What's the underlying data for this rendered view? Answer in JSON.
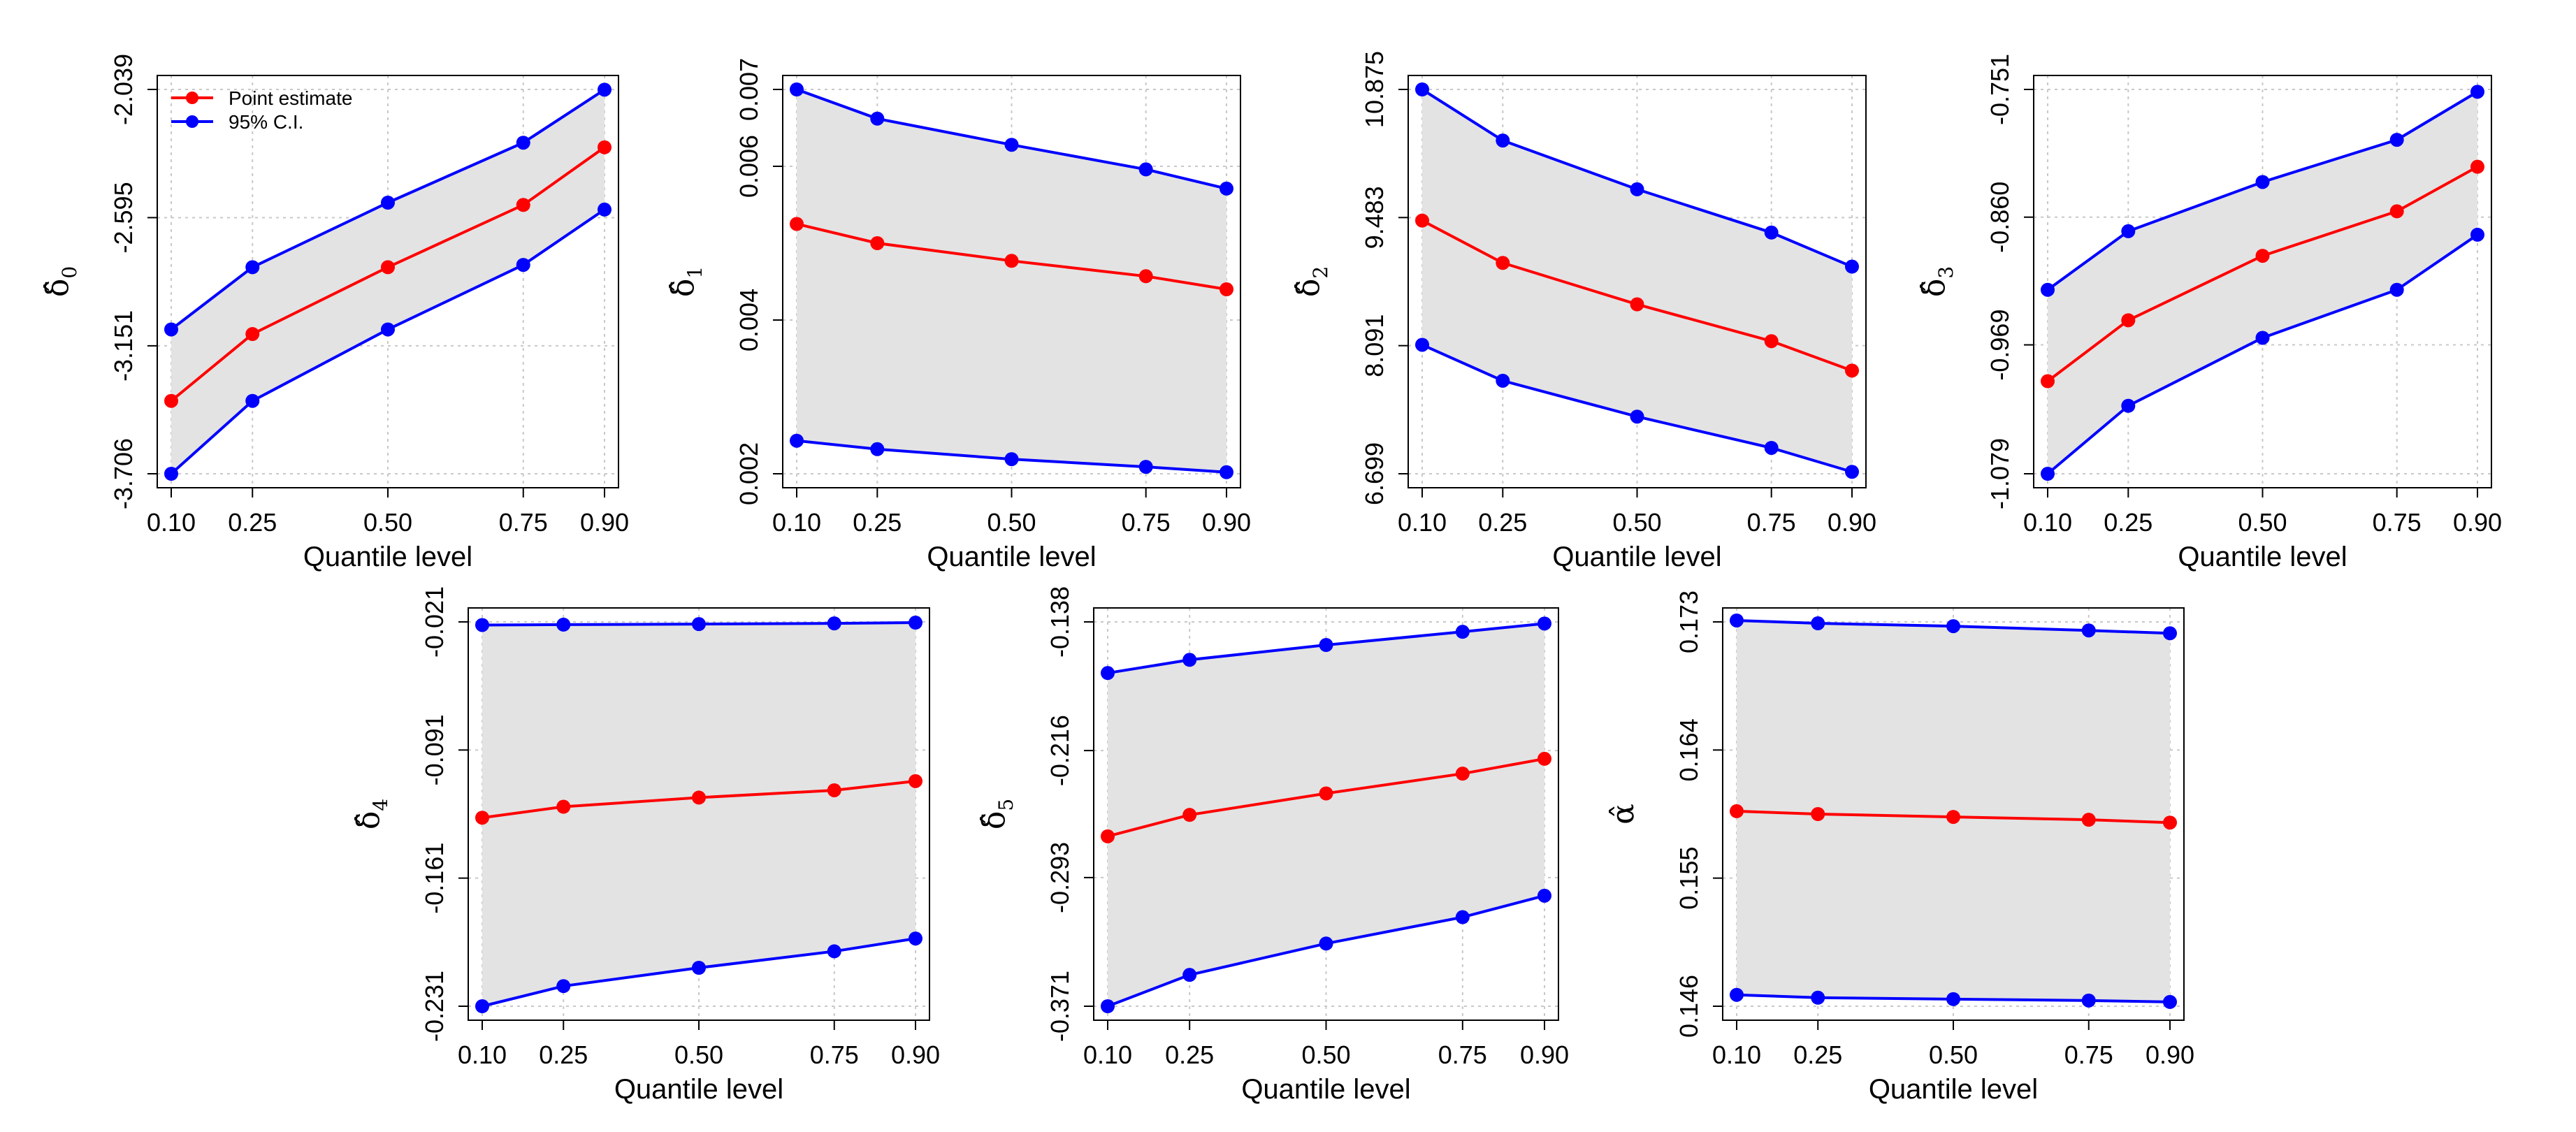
{
  "chart_data": [
    {
      "type": "line",
      "panel": "delta0",
      "ylabel_symbol": "δ̂",
      "ylabel_subscript": "0",
      "xlabel": "Quantile level",
      "x": [
        0.1,
        0.25,
        0.5,
        0.75,
        0.9
      ],
      "x_tick_labels": [
        "0.10",
        "0.25",
        "0.50",
        "0.75",
        "0.90"
      ],
      "y_tick_values": [
        -3.706,
        -3.151,
        -2.595,
        -2.039
      ],
      "y_tick_labels": [
        "-3.706",
        "-3.151",
        "-2.595",
        "-2.039"
      ],
      "ylim": [
        -3.706,
        -2.039
      ],
      "grid": true,
      "shaded_band": "between CI bounds",
      "legend": {
        "position": "top-left",
        "entries": [
          "Point estimate",
          "95% C.I."
        ]
      },
      "series": [
        {
          "name": "Point estimate",
          "color": "#ff0000",
          "values": [
            -3.39,
            -3.1,
            -2.81,
            -2.54,
            -2.29
          ]
        },
        {
          "name": "95% C.I. upper",
          "color": "#0000ff",
          "values": [
            -3.08,
            -2.81,
            -2.53,
            -2.27,
            -2.04
          ]
        },
        {
          "name": "95% C.I. lower",
          "color": "#0000ff",
          "values": [
            -3.706,
            -3.39,
            -3.08,
            -2.8,
            -2.56
          ]
        }
      ]
    },
    {
      "type": "line",
      "panel": "delta1",
      "ylabel_symbol": "δ̂",
      "ylabel_subscript": "1",
      "xlabel": "Quantile level",
      "x": [
        0.1,
        0.25,
        0.5,
        0.75,
        0.9
      ],
      "x_tick_labels": [
        "0.10",
        "0.25",
        "0.50",
        "0.75",
        "0.90"
      ],
      "y_tick_values": [
        0.002,
        0.004,
        0.006,
        0.007
      ],
      "y_tick_labels": [
        "0.002",
        "0.004",
        "0.006",
        "0.007"
      ],
      "ylim": [
        0.002,
        0.007
      ],
      "grid": true,
      "shaded_band": "between CI bounds",
      "series": [
        {
          "name": "Point estimate",
          "color": "#ff0000",
          "values": [
            0.00525,
            0.005,
            0.00477,
            0.00457,
            0.0044
          ]
        },
        {
          "name": "95% C.I. upper",
          "color": "#0000ff",
          "values": [
            0.007,
            0.00662,
            0.00628,
            0.00596,
            0.00571
          ]
        },
        {
          "name": "95% C.I. lower",
          "color": "#0000ff",
          "values": [
            0.00243,
            0.00232,
            0.00219,
            0.00209,
            0.00202
          ]
        }
      ]
    },
    {
      "type": "line",
      "panel": "delta2",
      "ylabel_symbol": "δ̂",
      "ylabel_subscript": "2",
      "xlabel": "Quantile level",
      "x": [
        0.1,
        0.25,
        0.5,
        0.75,
        0.9
      ],
      "x_tick_labels": [
        "0.10",
        "0.25",
        "0.50",
        "0.75",
        "0.90"
      ],
      "y_tick_values": [
        6.699,
        8.091,
        9.483,
        10.875
      ],
      "y_tick_labels": [
        "6.699",
        "8.091",
        "9.483",
        "10.875"
      ],
      "ylim": [
        6.699,
        10.875
      ],
      "grid": true,
      "shaded_band": "between CI bounds",
      "series": [
        {
          "name": "Point estimate",
          "color": "#ff0000",
          "values": [
            9.45,
            8.99,
            8.54,
            8.14,
            7.82
          ]
        },
        {
          "name": "95% C.I. upper",
          "color": "#0000ff",
          "values": [
            10.875,
            10.32,
            9.79,
            9.32,
            8.95
          ]
        },
        {
          "name": "95% C.I. lower",
          "color": "#0000ff",
          "values": [
            8.1,
            7.71,
            7.32,
            6.98,
            6.72
          ]
        }
      ]
    },
    {
      "type": "line",
      "panel": "delta3",
      "ylabel_symbol": "δ̂",
      "ylabel_subscript": "3",
      "xlabel": "Quantile level",
      "x": [
        0.1,
        0.25,
        0.5,
        0.75,
        0.9
      ],
      "x_tick_labels": [
        "0.10",
        "0.25",
        "0.50",
        "0.75",
        "0.90"
      ],
      "y_tick_values": [
        -1.079,
        -0.969,
        -0.86,
        -0.751
      ],
      "y_tick_labels": [
        "-1.079",
        "-0.969",
        "-0.860",
        "-0.751"
      ],
      "ylim": [
        -1.079,
        -0.751
      ],
      "grid": true,
      "shaded_band": "between CI bounds",
      "series": [
        {
          "name": "Point estimate",
          "color": "#ff0000",
          "values": [
            -1.0,
            -0.948,
            -0.893,
            -0.855,
            -0.817
          ]
        },
        {
          "name": "95% C.I. upper",
          "color": "#0000ff",
          "values": [
            -0.922,
            -0.872,
            -0.83,
            -0.794,
            -0.753
          ]
        },
        {
          "name": "95% C.I. lower",
          "color": "#0000ff",
          "values": [
            -1.079,
            -1.021,
            -0.963,
            -0.922,
            -0.875
          ]
        }
      ]
    },
    {
      "type": "line",
      "panel": "delta4",
      "ylabel_symbol": "δ̂",
      "ylabel_subscript": "4",
      "xlabel": "Quantile level",
      "x": [
        0.1,
        0.25,
        0.5,
        0.75,
        0.9
      ],
      "x_tick_labels": [
        "0.10",
        "0.25",
        "0.50",
        "0.75",
        "0.90"
      ],
      "y_tick_values": [
        -0.231,
        -0.161,
        -0.091,
        -0.021
      ],
      "y_tick_labels": [
        "-0.231",
        "-0.161",
        "-0.091",
        "-0.021"
      ],
      "ylim": [
        -0.231,
        -0.021
      ],
      "grid": true,
      "shaded_band": "between CI bounds",
      "series": [
        {
          "name": "Point estimate",
          "color": "#ff0000",
          "values": [
            -0.128,
            -0.122,
            -0.117,
            -0.113,
            -0.108
          ]
        },
        {
          "name": "95% C.I. upper",
          "color": "#0000ff",
          "values": [
            -0.0227,
            -0.0225,
            -0.0222,
            -0.0218,
            -0.0214
          ]
        },
        {
          "name": "95% C.I. lower",
          "color": "#0000ff",
          "values": [
            -0.231,
            -0.22,
            -0.21,
            -0.201,
            -0.194
          ]
        }
      ]
    },
    {
      "type": "line",
      "panel": "delta5",
      "ylabel_symbol": "δ̂",
      "ylabel_subscript": "5",
      "xlabel": "Quantile level",
      "x": [
        0.1,
        0.25,
        0.5,
        0.75,
        0.9
      ],
      "x_tick_labels": [
        "0.10",
        "0.25",
        "0.50",
        "0.75",
        "0.90"
      ],
      "y_tick_values": [
        -0.371,
        -0.293,
        -0.216,
        -0.138
      ],
      "y_tick_labels": [
        "-0.371",
        "-0.293",
        "-0.216",
        "-0.138"
      ],
      "ylim": [
        -0.371,
        -0.138
      ],
      "grid": true,
      "shaded_band": "between CI bounds",
      "series": [
        {
          "name": "Point estimate",
          "color": "#ff0000",
          "values": [
            -0.268,
            -0.255,
            -0.242,
            -0.23,
            -0.221
          ]
        },
        {
          "name": "95% C.I. upper",
          "color": "#0000ff",
          "values": [
            -0.169,
            -0.161,
            -0.152,
            -0.144,
            -0.139
          ]
        },
        {
          "name": "95% C.I. lower",
          "color": "#0000ff",
          "values": [
            -0.371,
            -0.352,
            -0.333,
            -0.317,
            -0.304
          ]
        }
      ]
    },
    {
      "type": "line",
      "panel": "alpha",
      "ylabel_symbol": "α̂",
      "ylabel_subscript": "",
      "xlabel": "Quantile level",
      "x": [
        0.1,
        0.25,
        0.5,
        0.75,
        0.9
      ],
      "x_tick_labels": [
        "0.10",
        "0.25",
        "0.50",
        "0.75",
        "0.90"
      ],
      "y_tick_values": [
        0.146,
        0.155,
        0.164,
        0.173
      ],
      "y_tick_labels": [
        "0.146",
        "0.155",
        "0.164",
        "0.173"
      ],
      "ylim": [
        0.146,
        0.173
      ],
      "grid": true,
      "shaded_band": "between CI bounds",
      "series": [
        {
          "name": "Point estimate",
          "color": "#ff0000",
          "values": [
            0.1597,
            0.1595,
            0.1593,
            0.1591,
            0.1589
          ]
        },
        {
          "name": "95% C.I. upper",
          "color": "#0000ff",
          "values": [
            0.1731,
            0.1729,
            0.1727,
            0.1724,
            0.1722
          ]
        },
        {
          "name": "95% C.I. lower",
          "color": "#0000ff",
          "values": [
            0.1468,
            0.1466,
            0.1465,
            0.1464,
            0.1463
          ]
        }
      ]
    }
  ]
}
